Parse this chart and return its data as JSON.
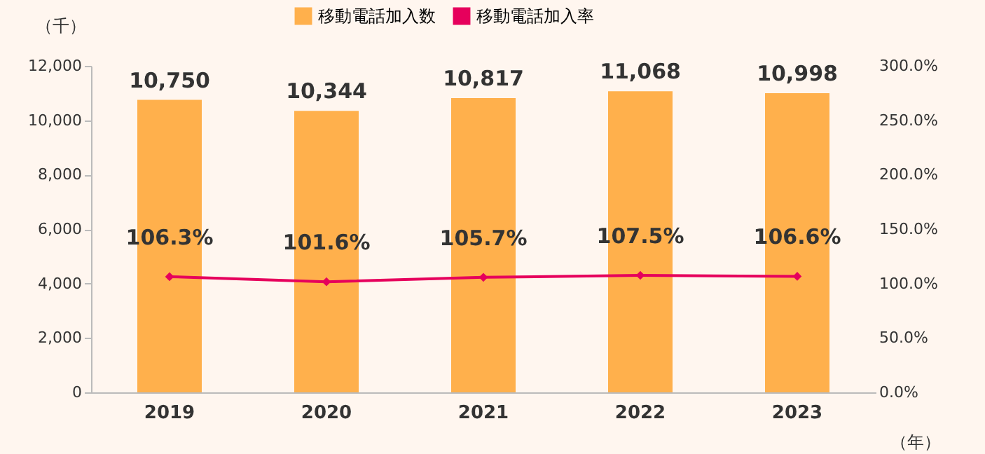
{
  "chart_data": {
    "type": "bar",
    "categories": [
      "2019",
      "2020",
      "2021",
      "2022",
      "2023"
    ],
    "xlabel": "（年）",
    "ylabel": "（千）",
    "series": [
      {
        "name": "移動電話加入数",
        "color": "#ffb04c",
        "values": [
          10750,
          10344,
          10817,
          11068,
          10998
        ],
        "value_labels": [
          "10,750",
          "10,344",
          "10,817",
          "11,068",
          "10,998"
        ]
      },
      {
        "name": "移動電話加入率",
        "type": "line",
        "axis": "y2",
        "color": "#e6005c",
        "marker": "diamond",
        "values": [
          106.3,
          101.6,
          105.7,
          107.5,
          106.6
        ],
        "value_labels": [
          "106.3%",
          "101.6%",
          "105.7%",
          "107.5%",
          "106.6%"
        ]
      }
    ],
    "ylim": [
      0,
      12000
    ],
    "yticks": [
      {
        "value": 0,
        "label": "0"
      },
      {
        "value": 2000,
        "label": "2,000"
      },
      {
        "value": 4000,
        "label": "4,000"
      },
      {
        "value": 6000,
        "label": "6,000"
      },
      {
        "value": 8000,
        "label": "8,000"
      },
      {
        "value": 10000,
        "label": "10,000"
      },
      {
        "value": 12000,
        "label": "12,000"
      }
    ],
    "y2lim": [
      0,
      300
    ],
    "y2ticks": [
      {
        "value": 0,
        "label": "0.0%"
      },
      {
        "value": 50,
        "label": "50.0%"
      },
      {
        "value": 100,
        "label": "100.0%"
      },
      {
        "value": 150,
        "label": "150.0%"
      },
      {
        "value": 200,
        "label": "200.0%"
      },
      {
        "value": 250,
        "label": "250.0%"
      },
      {
        "value": 300,
        "label": "300.0%"
      }
    ],
    "grid": false,
    "legend": "top"
  }
}
